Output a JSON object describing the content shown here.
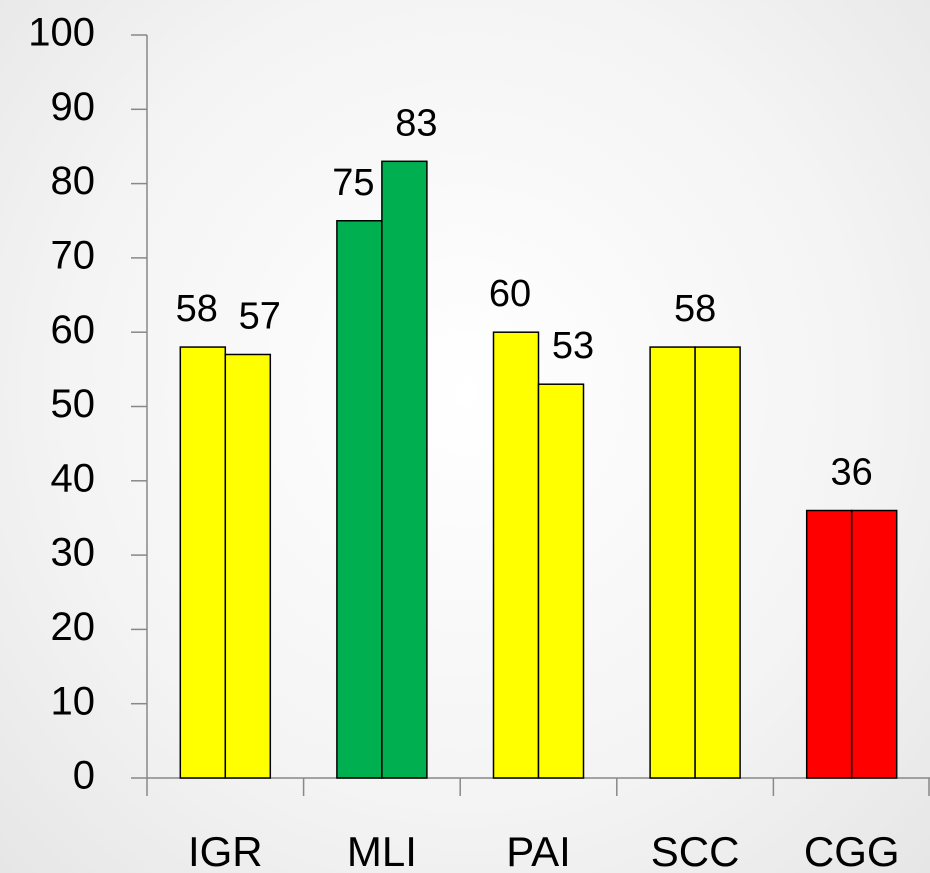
{
  "chart_data": {
    "type": "bar",
    "categories": [
      "IGR",
      "MLI",
      "PAI",
      "SCC",
      "CGG"
    ],
    "series": [
      {
        "values": [
          58,
          75,
          60,
          58,
          36
        ],
        "colors": [
          "#ffff00",
          "#00b050",
          "#ffff00",
          "#ffff00",
          "#ff0000"
        ]
      },
      {
        "values": [
          57,
          83,
          53,
          58,
          36
        ],
        "colors": [
          "#ffff00",
          "#00b050",
          "#ffff00",
          "#ffff00",
          "#ff0000"
        ],
        "value_labels": [
          "57",
          "83",
          "53",
          null,
          null
        ]
      }
    ],
    "ylim": [
      0,
      100
    ],
    "yticks": [
      0,
      10,
      20,
      30,
      40,
      50,
      60,
      70,
      80,
      90,
      100
    ],
    "grid": false
  }
}
